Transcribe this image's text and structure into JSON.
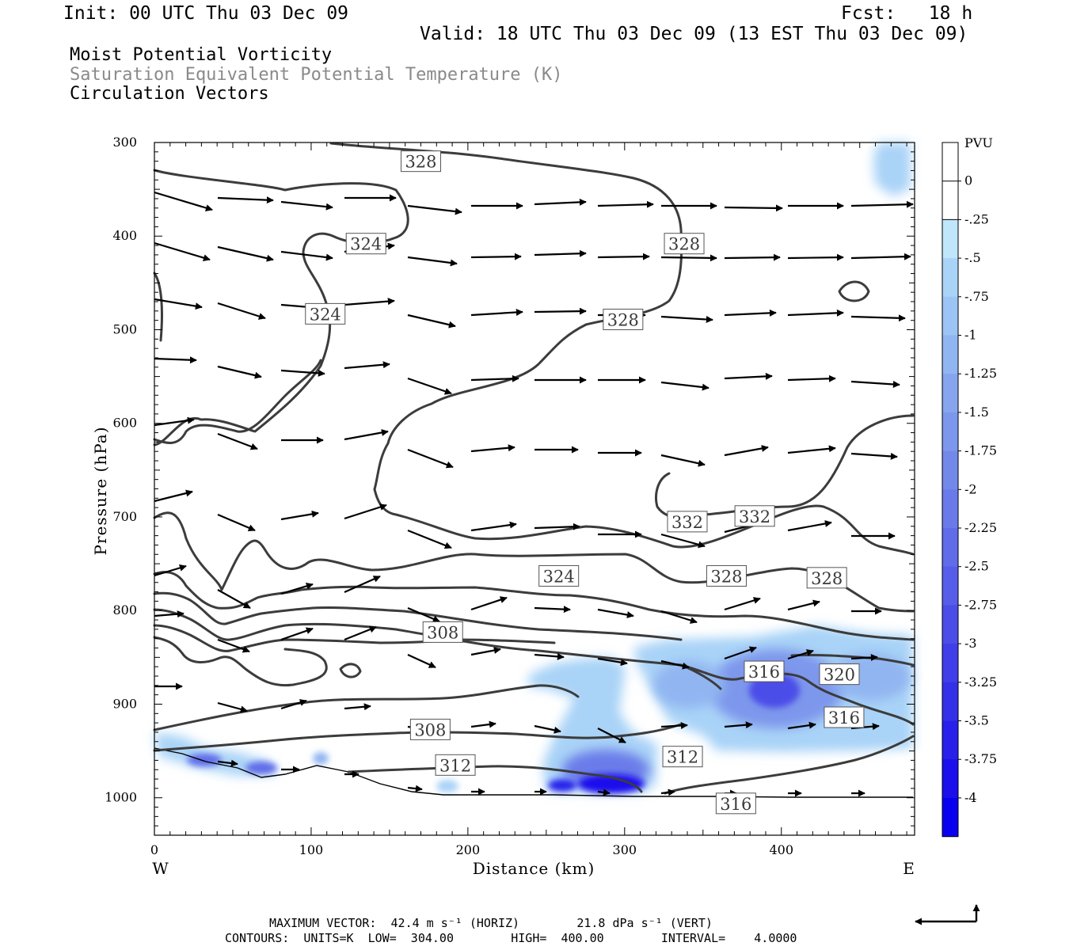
{
  "header": {
    "init": "Init: 00 UTC Thu 03 Dec 09",
    "fcst": "Fcst:   18 h",
    "valid": "Valid: 18 UTC Thu 03 Dec 09 (13 EST Thu 03 Dec 09)",
    "line1": "Moist Potential Vorticity",
    "line2": "Saturation Equivalent Potential Temperature (K)",
    "line3": "Circulation Vectors"
  },
  "footer": {
    "max_vector": "MAXIMUM VECTOR:  42.4 m s⁻¹ (HORIZ)        21.8 dPa s⁻¹ (VERT)",
    "contours": "CONTOURS:  UNITS=K  LOW=  304.00        HIGH=  400.00        INTERVAL=    4.0000"
  },
  "chart_data": {
    "type": "cross-section",
    "xlabel": "Distance (km)",
    "ylabel": "Pressure (hPa)",
    "x_left_label": "W",
    "x_right_label": "E",
    "xlim": [
      0,
      485
    ],
    "ylim": [
      1040,
      300
    ],
    "x_ticks": [
      0,
      100,
      200,
      300,
      400
    ],
    "y_ticks": [
      300,
      400,
      500,
      600,
      700,
      800,
      900,
      1000
    ],
    "colorbar": {
      "unit": "PVU",
      "labels": [
        "0",
        "-.25",
        "-.5",
        "-.75",
        "-1",
        "-1.25",
        "-1.5",
        "-1.75",
        "-2",
        "-2.25",
        "-2.5",
        "-2.75",
        "-3",
        "-3.25",
        "-3.5",
        "-3.75",
        "-4"
      ],
      "colors": [
        "#ffffff",
        "#ffffff",
        "#bfe6fb",
        "#a9d3f7",
        "#9cc4f4",
        "#91b5f1",
        "#86a5ee",
        "#7d97ec",
        "#7389ea",
        "#6a7be9",
        "#606ce8",
        "#565de8",
        "#4b4de8",
        "#403ee8",
        "#3430e8",
        "#2820ea",
        "#1b10ec",
        "#0a00f0"
      ]
    },
    "contour_labels": [
      {
        "text": "328",
        "x": 170,
        "p": 320
      },
      {
        "text": "324",
        "x": 135,
        "p": 408
      },
      {
        "text": "328",
        "x": 338,
        "p": 408
      },
      {
        "text": "324",
        "x": 109,
        "p": 483
      },
      {
        "text": "328",
        "x": 299,
        "p": 489
      },
      {
        "text": "332",
        "x": 340,
        "p": 705
      },
      {
        "text": "332",
        "x": 383,
        "p": 699
      },
      {
        "text": "324",
        "x": 258,
        "p": 763
      },
      {
        "text": "328",
        "x": 365,
        "p": 763
      },
      {
        "text": "328",
        "x": 429,
        "p": 765
      },
      {
        "text": "308",
        "x": 184,
        "p": 823
      },
      {
        "text": "316",
        "x": 389,
        "p": 865
      },
      {
        "text": "320",
        "x": 437,
        "p": 868
      },
      {
        "text": "316",
        "x": 440,
        "p": 914
      },
      {
        "text": "308",
        "x": 176,
        "p": 927
      },
      {
        "text": "312",
        "x": 337,
        "p": 956
      },
      {
        "text": "312",
        "x": 192,
        "p": 965
      },
      {
        "text": "316",
        "x": 371,
        "p": 1006
      }
    ],
    "max_vector": {
      "horiz": 42.4,
      "horiz_unit": "m s-1",
      "vert": 21.8,
      "vert_unit": "dPa s-1"
    },
    "contour_spec": {
      "units": "K",
      "low": 304.0,
      "high": 400.0,
      "interval": 4.0
    }
  }
}
